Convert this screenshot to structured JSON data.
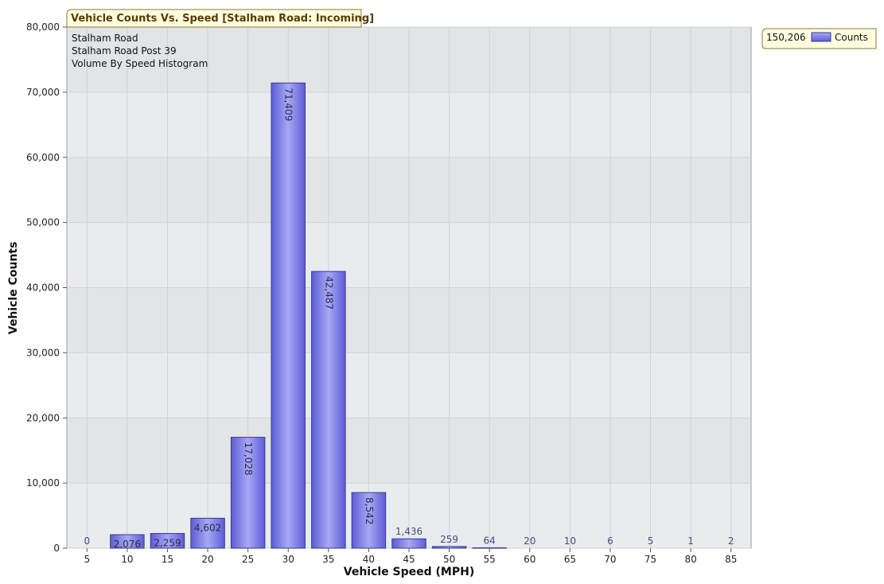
{
  "chart_data": {
    "type": "bar",
    "title": "Vehicle Counts Vs. Speed [Stalham Road: Incoming]",
    "annotations": [
      "Stalham Road",
      "Stalham Road Post 39",
      "Volume By Speed Histogram"
    ],
    "xlabel": "Vehicle Speed (MPH)",
    "ylabel": "Vehicle Counts",
    "categories": [
      "5",
      "10",
      "15",
      "20",
      "25",
      "30",
      "35",
      "40",
      "45",
      "50",
      "55",
      "60",
      "65",
      "70",
      "75",
      "80",
      "85"
    ],
    "series": [
      {
        "name": "Counts",
        "values": [
          0,
          2076,
          2259,
          4602,
          17028,
          71409,
          42487,
          8542,
          1436,
          259,
          64,
          20,
          10,
          6,
          5,
          1,
          2
        ]
      }
    ],
    "value_labels": [
      "0",
      "2,076",
      "2,259",
      "4,602",
      "17,028",
      "71,409",
      "42,487",
      "8,542",
      "1,436",
      "259",
      "64",
      "20",
      "10",
      "6",
      "5",
      "1",
      "2"
    ],
    "ylim": [
      0,
      80000
    ],
    "yticks": [
      0,
      10000,
      20000,
      30000,
      40000,
      50000,
      60000,
      70000,
      80000
    ],
    "ytick_labels": [
      "0",
      "10,000",
      "20,000",
      "30,000",
      "40,000",
      "50,000",
      "60,000",
      "70,000",
      "80,000"
    ],
    "grid": true,
    "legend": {
      "position": "top-right",
      "total_label": "150,206",
      "entry": "Counts"
    },
    "colors": {
      "bar": "#8585e6",
      "bar_dark": "#5c5cd6",
      "bar_light": "#a8a8f5",
      "bar_edge": "#3a3a8a",
      "plot_bg": "#e9ecef",
      "band": "#e2e4e6",
      "grid": "#cfd3d7",
      "tag_bg": "#ffffe0",
      "tag_border": "#8a7a33"
    }
  }
}
